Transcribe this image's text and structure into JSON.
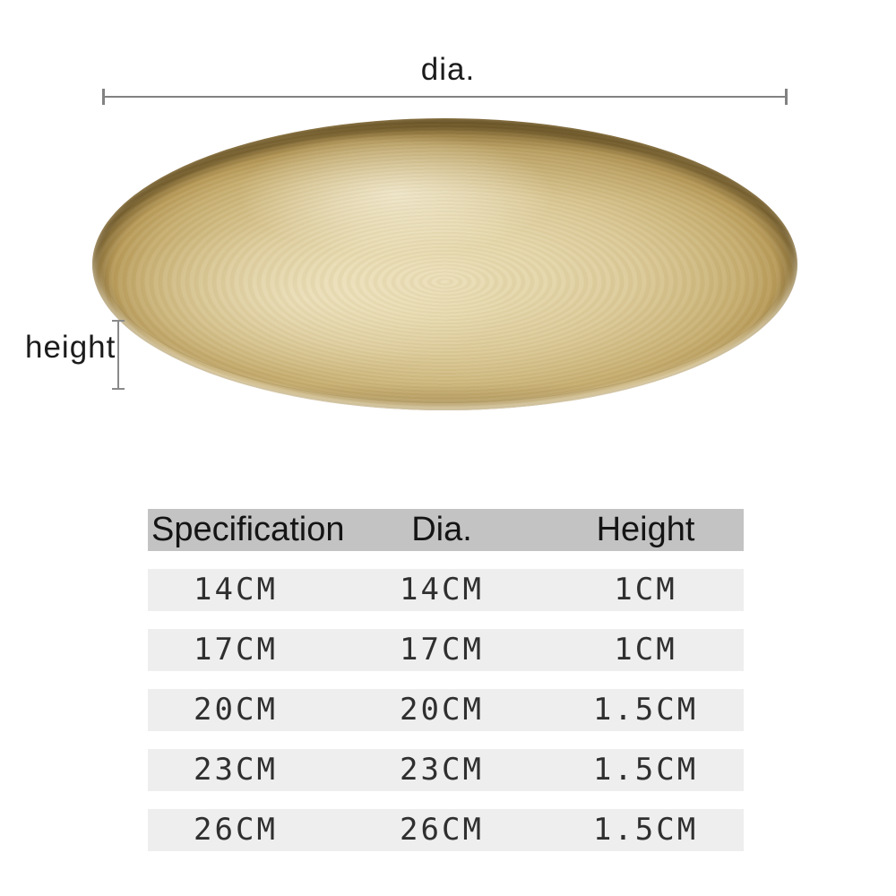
{
  "annotations": {
    "diameter_label": "dia.",
    "height_label": "height"
  },
  "tray": {
    "description": "round gold brushed-metal tray, top view",
    "colors": {
      "surface_light": "#e9dcb4",
      "surface_mid": "#d0bb82",
      "rim_dark": "#7c6432",
      "top_shadow": "#4a3916",
      "highlight": "#fffdf2"
    }
  },
  "measure_line_color": "#828282",
  "table": {
    "header_bg": "#c3c3c3",
    "row_bg": "#eeeeee",
    "headers": {
      "specification": "Specification",
      "dia": "Dia.",
      "height": "Height"
    },
    "rows": [
      {
        "spec": "14CM",
        "dia": "14CM",
        "height": "1CM"
      },
      {
        "spec": "17CM",
        "dia": "17CM",
        "height": "1CM"
      },
      {
        "spec": "20CM",
        "dia": "20CM",
        "height": "1.5CM"
      },
      {
        "spec": "23CM",
        "dia": "23CM",
        "height": "1.5CM"
      },
      {
        "spec": "26CM",
        "dia": "26CM",
        "height": "1.5CM"
      }
    ]
  }
}
